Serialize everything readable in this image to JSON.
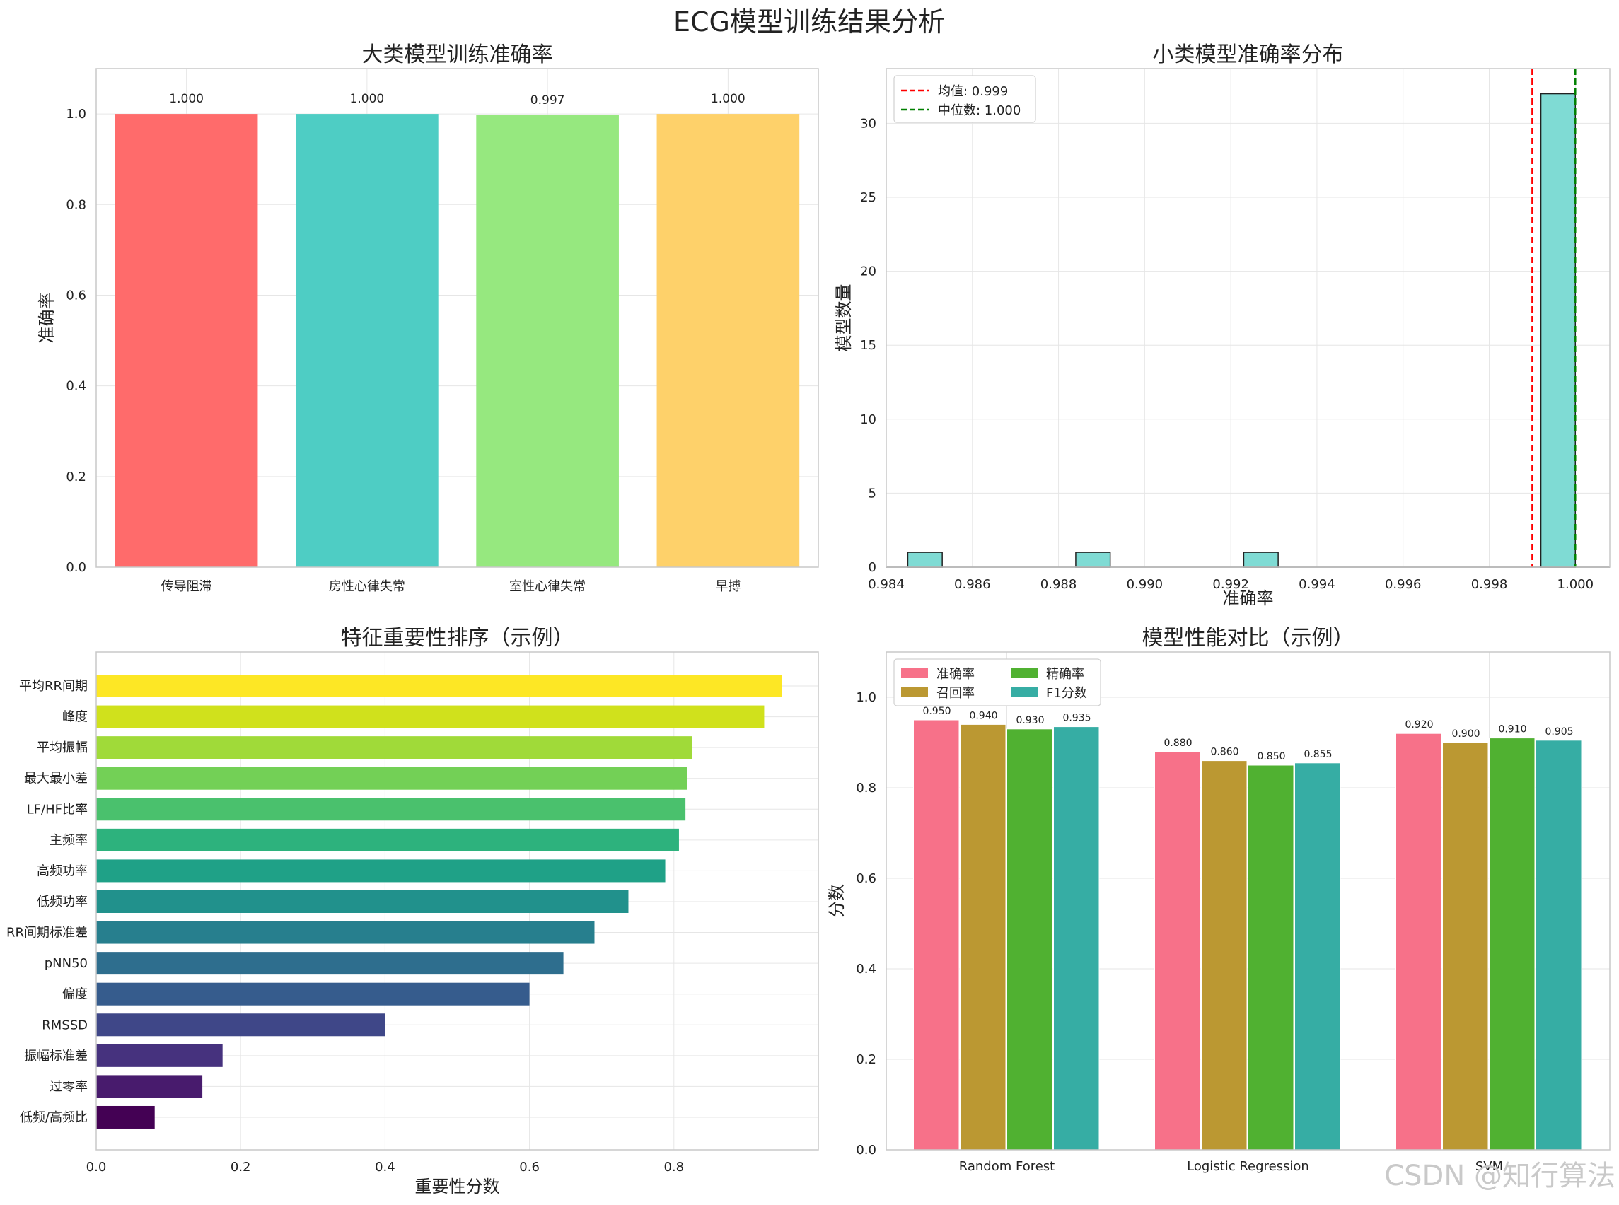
{
  "suptitle": "ECG模型训练结果分析",
  "watermark": "CSDN @知行算法",
  "chart_data": [
    {
      "type": "bar",
      "title": "大类模型训练准确率",
      "xlabel": "",
      "ylabel": "准确率",
      "categories": [
        "传导阻滞",
        "房性心律失常",
        "室性心律失常",
        "早搏"
      ],
      "values": [
        1.0,
        1.0,
        0.997,
        1.0
      ],
      "value_labels": [
        "1.000",
        "1.000",
        "0.997",
        "1.000"
      ],
      "colors": [
        "#ff6b6b",
        "#4ecdc4",
        "#96e87f",
        "#fed16a"
      ],
      "ylim": [
        0,
        1.1
      ],
      "yticks": [
        0.0,
        0.2,
        0.4,
        0.6,
        0.8,
        1.0
      ],
      "ytick_labels": [
        "0.0",
        "0.2",
        "0.4",
        "0.6",
        "0.8",
        "1.0"
      ],
      "grid": true
    },
    {
      "type": "bar",
      "subtype": "histogram",
      "title": "小类模型准确率分布",
      "xlabel": "准确率",
      "ylabel": "模型数量",
      "bins": [
        {
          "x0": 0.9845,
          "x1": 0.9853,
          "count": 1
        },
        {
          "x0": 0.9884,
          "x1": 0.9892,
          "count": 1
        },
        {
          "x0": 0.9923,
          "x1": 0.9931,
          "count": 1
        },
        {
          "x0": 0.9992,
          "x1": 1.0,
          "count": 32
        }
      ],
      "bar_color": "#7fdbd4",
      "xlim": [
        0.984,
        1.0008
      ],
      "ylim": [
        0,
        33.7
      ],
      "xticks": [
        0.984,
        0.986,
        0.988,
        0.99,
        0.992,
        0.994,
        0.996,
        0.998,
        1.0
      ],
      "xtick_labels": [
        "0.984",
        "0.986",
        "0.988",
        "0.990",
        "0.992",
        "0.994",
        "0.996",
        "0.998",
        "1.000"
      ],
      "yticks": [
        0,
        5,
        10,
        15,
        20,
        25,
        30
      ],
      "ytick_labels": [
        "0",
        "5",
        "10",
        "15",
        "20",
        "25",
        "30"
      ],
      "lines": [
        {
          "value": 0.999,
          "label": "均值: 0.999",
          "color": "#ff0000"
        },
        {
          "value": 1.0,
          "label": "中位数: 1.000",
          "color": "#008000"
        }
      ],
      "legend": "top-left",
      "grid": true
    },
    {
      "type": "bar",
      "orientation": "horizontal",
      "title": "特征重要性排序（示例）",
      "xlabel": "重要性分数",
      "ylabel": "",
      "categories": [
        "平均RR间期",
        "峰度",
        "平均振幅",
        "最大最小差",
        "LF/HF比率",
        "主频率",
        "高频功率",
        "低频功率",
        "RR间期标准差",
        "pNN50",
        "偏度",
        "RMSSD",
        "振幅标准差",
        "过零率",
        "低频/高频比"
      ],
      "values": [
        0.95,
        0.925,
        0.825,
        0.818,
        0.816,
        0.807,
        0.788,
        0.737,
        0.69,
        0.647,
        0.6,
        0.4,
        0.175,
        0.147,
        0.081
      ],
      "colors": [
        "#fde725",
        "#d0e11c",
        "#a0da39",
        "#73d056",
        "#4ac16d",
        "#2db27d",
        "#1fa187",
        "#21918c",
        "#277f8e",
        "#2e6e8e",
        "#365c8d",
        "#3f4788",
        "#46327e",
        "#481b6d",
        "#440154"
      ],
      "xlim": [
        0,
        1.0
      ],
      "xticks": [
        0.0,
        0.2,
        0.4,
        0.6,
        0.8
      ],
      "xtick_labels": [
        "0.0",
        "0.2",
        "0.4",
        "0.6",
        "0.8"
      ],
      "grid": true
    },
    {
      "type": "bar",
      "title": "模型性能对比（示例）",
      "xlabel": "",
      "ylabel": "分数",
      "categories": [
        "Random Forest",
        "Logistic Regression",
        "SVM"
      ],
      "series": [
        {
          "name": "准确率",
          "color": "#f77189",
          "values": [
            0.95,
            0.88,
            0.92
          ],
          "labels": [
            "0.950",
            "0.880",
            "0.920"
          ]
        },
        {
          "name": "召回率",
          "color": "#bb9832",
          "values": [
            0.94,
            0.86,
            0.9
          ],
          "labels": [
            "0.940",
            "0.860",
            "0.900"
          ]
        },
        {
          "name": "精确率",
          "color": "#50b131",
          "values": [
            0.93,
            0.85,
            0.91
          ],
          "labels": [
            "0.930",
            "0.850",
            "0.910"
          ]
        },
        {
          "name": "F1分数",
          "color": "#36ada4",
          "values": [
            0.935,
            0.855,
            0.905
          ],
          "labels": [
            "0.935",
            "0.855",
            "0.905"
          ]
        }
      ],
      "ylim": [
        0,
        1.1
      ],
      "yticks": [
        0.0,
        0.2,
        0.4,
        0.6,
        0.8,
        1.0
      ],
      "ytick_labels": [
        "0.0",
        "0.2",
        "0.4",
        "0.6",
        "0.8",
        "1.0"
      ],
      "legend": "top-left",
      "grid": true
    }
  ]
}
